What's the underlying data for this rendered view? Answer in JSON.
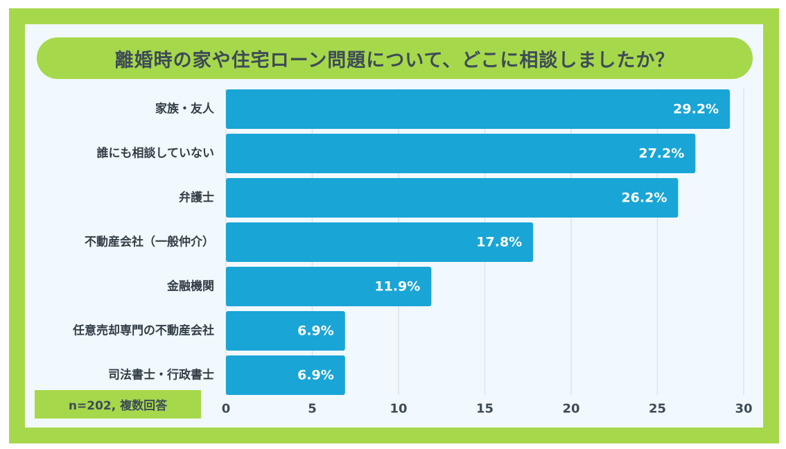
{
  "title": "離婚時の家や住宅ローン問題について、どこに相談しましたか？",
  "note": "n=202, 複数回答",
  "colors": {
    "frame": "#a6d84b",
    "panel": "#f1f9fe",
    "bar": "#19a5d6",
    "grid": "#dfe3e7"
  },
  "chart_data": {
    "type": "bar",
    "orientation": "horizontal",
    "categories": [
      "家族・友人",
      "誰にも相談していない",
      "弁護士",
      "不動産会社（一般仲介）",
      "金融機関",
      "任意売却専門の不動産会社",
      "司法書士・行政書士"
    ],
    "values": [
      29.2,
      27.2,
      26.2,
      17.8,
      11.9,
      6.9,
      6.9
    ],
    "value_labels": [
      "29.2%",
      "27.2%",
      "26.2%",
      "17.8%",
      "11.9%",
      "6.9%",
      "6.9%"
    ],
    "xlim": [
      0,
      30
    ],
    "xticks": [
      0,
      5,
      10,
      15,
      20,
      25,
      30
    ],
    "xtick_labels": [
      "0",
      "5",
      "10",
      "15",
      "20",
      "25",
      "30"
    ],
    "grid": true,
    "title": "離婚時の家や住宅ローン問題について、どこに相談しましたか？"
  }
}
